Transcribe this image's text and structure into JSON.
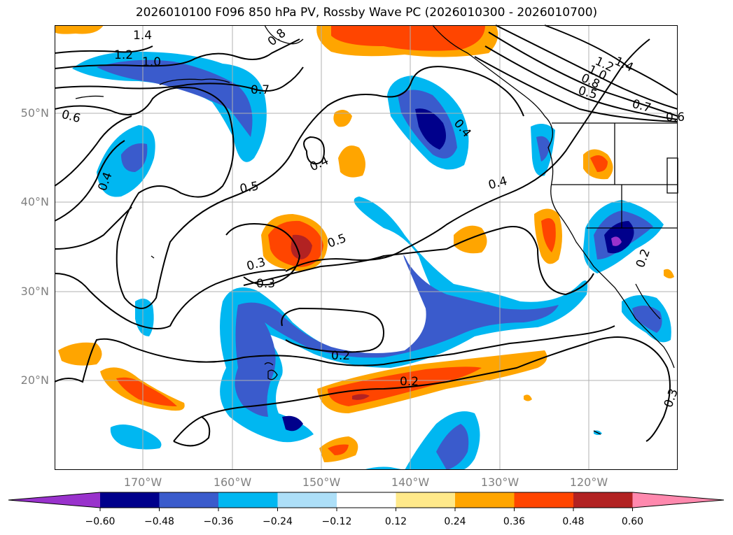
{
  "title": "2026010100 F096 850 hPa PV, Rossby Wave PC (2026010300 - 2026010700)",
  "lat_labels": [
    "50°N",
    "40°N",
    "30°N",
    "20°N"
  ],
  "lon_labels": [
    "170°W",
    "160°W",
    "150°W",
    "140°W",
    "130°W",
    "120°W"
  ],
  "contour_labels": [
    "1.4",
    "1.2",
    "1.0",
    "0.8",
    "0.7",
    "0.6",
    "0.4",
    "0.4",
    "0.5",
    "0.5",
    "0.4",
    "0.4",
    "0.3",
    "0.3",
    "0.2",
    "0.2",
    "1.4",
    "1.2",
    "1.0",
    "0.8",
    "0.5",
    "0.7",
    "0.6",
    "0.2",
    "0.3"
  ],
  "colorbar": {
    "ticks": [
      "−0.60",
      "−0.48",
      "−0.36",
      "−0.24",
      "−0.12",
      "0.12",
      "0.24",
      "0.36",
      "0.48",
      "0.60"
    ],
    "colors": [
      "#9932CC",
      "#00008B",
      "#3A5BCC",
      "#00B7F1",
      "#ADDFF8",
      "#FFFFFF",
      "#FFE98A",
      "#FFA500",
      "#FF4500",
      "#B22222",
      "#FF89AE"
    ]
  },
  "palette": {
    "neg_deep": "#00008B",
    "neg_mid": "#3A5BCC",
    "neg_light": "#00B7F1",
    "neg_pale": "#ADDFF8",
    "pos_pale": "#FFE98A",
    "pos_light": "#FFA500",
    "pos_mid": "#FF4500",
    "pos_deep": "#B22222",
    "neg_extreme": "#9932CC"
  }
}
